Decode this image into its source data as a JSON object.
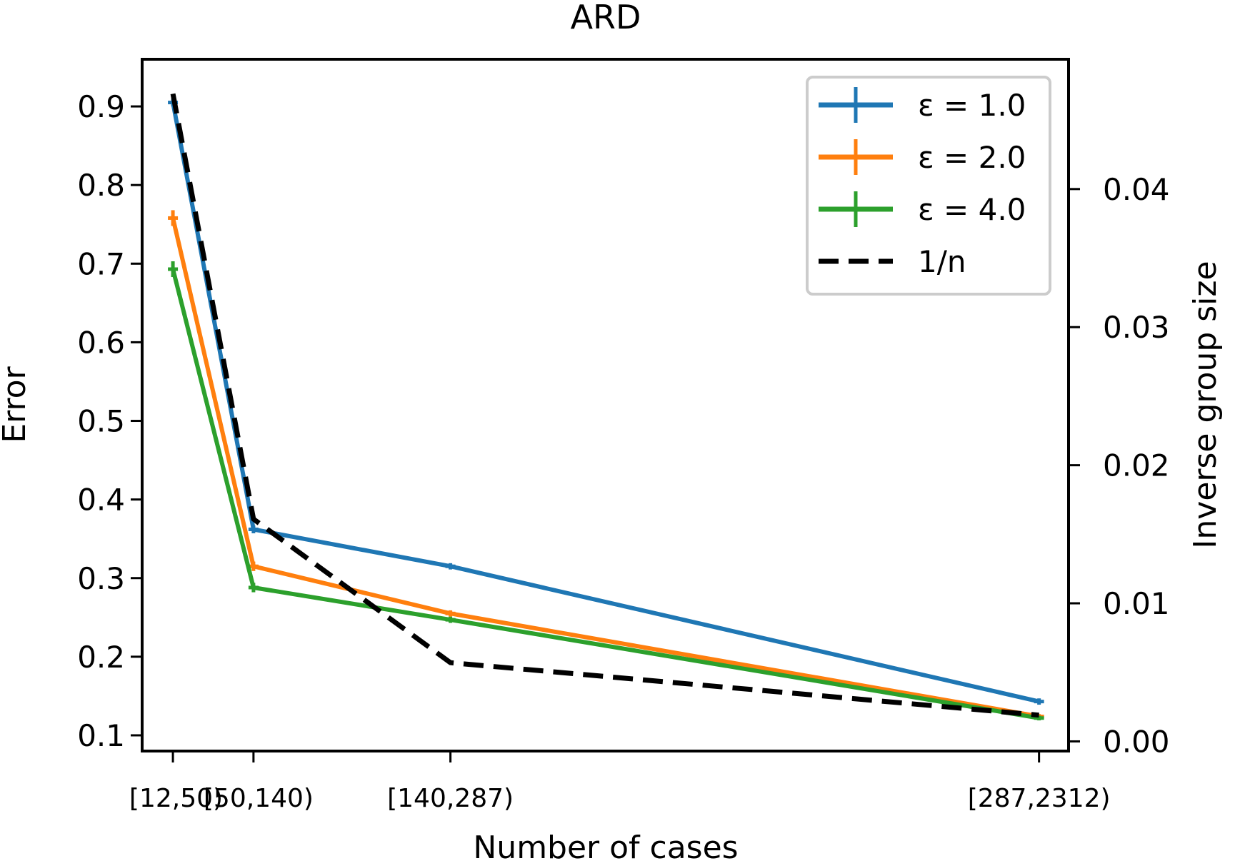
{
  "chart_data": {
    "type": "line",
    "title": "ARD",
    "xlabel": "Number of cases",
    "ylabel": "Error",
    "y2label": "Inverse group size",
    "categories": [
      "[12,50)",
      "[50,140)",
      "[140,287)",
      "[287,2312)"
    ],
    "x_positions": [
      21,
      57,
      145,
      408
    ],
    "xlim": [
      7.25,
      421.2
    ],
    "ylim": [
      0.08,
      0.96
    ],
    "y2lim": [
      -0.0007,
      0.0494
    ],
    "yticks": [
      0.1,
      0.2,
      0.3,
      0.4,
      0.5,
      0.6,
      0.7,
      0.8,
      0.9
    ],
    "y2ticks": [
      0.0,
      0.01,
      0.02,
      0.03,
      0.04
    ],
    "ytick_labels": [
      "0.1",
      "0.2",
      "0.3",
      "0.4",
      "0.5",
      "0.6",
      "0.7",
      "0.8",
      "0.9"
    ],
    "y2tick_labels": [
      "0.00",
      "0.01",
      "0.02",
      "0.03",
      "0.04"
    ],
    "grid": false,
    "legend_position": "top-right",
    "series": [
      {
        "name": "ε = 1.0",
        "color": "#1f77b4",
        "values": [
          0.905,
          0.362,
          0.315,
          0.143
        ],
        "errors": [
          0.005,
          0.005,
          0.004,
          0.004
        ],
        "axis": "left"
      },
      {
        "name": "ε = 2.0",
        "color": "#ff7f0e",
        "values": [
          0.758,
          0.315,
          0.255,
          0.124
        ],
        "errors": [
          0.01,
          0.006,
          0.004,
          0.003
        ],
        "axis": "left"
      },
      {
        "name": "ε = 4.0",
        "color": "#2ca02c",
        "values": [
          0.693,
          0.288,
          0.247,
          0.122
        ],
        "errors": [
          0.01,
          0.006,
          0.004,
          0.003
        ],
        "axis": "left"
      },
      {
        "name": "1/n",
        "color": "#000000",
        "dashed": true,
        "values": [
          0.0469,
          0.0161,
          0.0057,
          0.0019
        ],
        "axis": "right"
      }
    ]
  }
}
